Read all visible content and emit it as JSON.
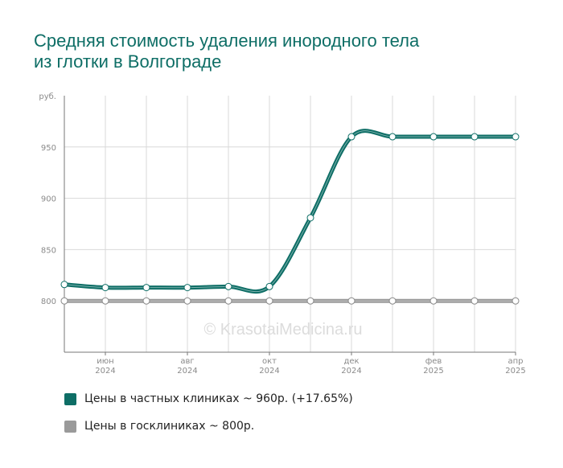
{
  "title": {
    "line1": "Средняя стоимость удаления инородного тела",
    "line2": "из глотки в Волгограде"
  },
  "watermark": "© KrasotaiMedicina.ru",
  "legend": [
    {
      "label": "Цены в частных клиниках ~ 960р. (+17.65%)",
      "color": "#0e6e66"
    },
    {
      "label": "Цены в госклиниках ~ 800р.",
      "color": "#9a9a9a"
    }
  ],
  "chart_data": {
    "type": "line",
    "ylabel": "руб.",
    "ylim": [
      750,
      1000
    ],
    "y_ticks": [
      800,
      850,
      900,
      950
    ],
    "grid": true,
    "x_ticks": [
      {
        "month": "июн",
        "year": "2024"
      },
      {
        "month": "авг",
        "year": "2024"
      },
      {
        "month": "окт",
        "year": "2024"
      },
      {
        "month": "дек",
        "year": "2024"
      },
      {
        "month": "фев",
        "year": "2025"
      },
      {
        "month": "апр",
        "year": "2025"
      }
    ],
    "x": [
      "2024-05",
      "2024-06",
      "2024-07",
      "2024-08",
      "2024-09",
      "2024-10",
      "2024-11",
      "2024-12",
      "2025-01",
      "2025-02",
      "2025-03",
      "2025-04"
    ],
    "series": [
      {
        "name": "Цены в частных клиниках",
        "color": "#0e6e66",
        "values": [
          816,
          813,
          813,
          813,
          814,
          814,
          881,
          960,
          960,
          960,
          960,
          960
        ]
      },
      {
        "name": "Цены в госклиниках",
        "color": "#9a9a9a",
        "values": [
          800,
          800,
          800,
          800,
          800,
          800,
          800,
          800,
          800,
          800,
          800,
          800
        ]
      }
    ]
  }
}
